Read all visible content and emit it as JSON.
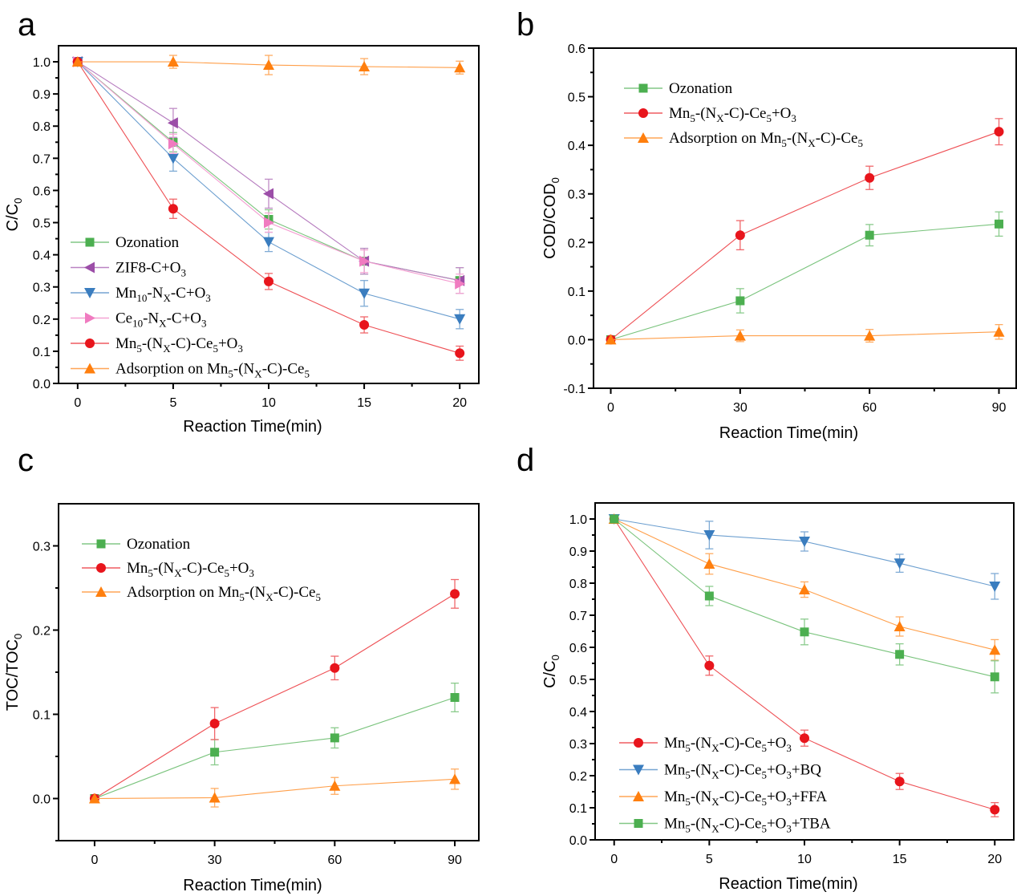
{
  "figure": {
    "panels": [
      "a",
      "b",
      "c",
      "d"
    ]
  },
  "chart_data": [
    {
      "id": "a",
      "type": "line",
      "panel_label": "a",
      "title": "",
      "xlabel": "Reaction Time(min)",
      "ylabel": {
        "base": "C/C",
        "sub": "0"
      },
      "xlim": [
        -1,
        21
      ],
      "ylim": [
        0.0,
        1.05
      ],
      "xticks": [
        0,
        5,
        10,
        15,
        20
      ],
      "xtick_labels": [
        "0",
        "5",
        "10",
        "15",
        "20"
      ],
      "yticks": [
        0.0,
        0.1,
        0.2,
        0.3,
        0.4,
        0.5,
        0.6,
        0.7,
        0.8,
        0.9,
        1.0
      ],
      "ytick_labels": [
        "0.0",
        "0.1",
        "0.2",
        "0.3",
        "0.4",
        "0.5",
        "0.6",
        "0.7",
        "0.8",
        "0.9",
        "1.0"
      ],
      "grid": false,
      "legend_position": "bottom-left",
      "x": [
        0,
        5,
        10,
        15,
        20
      ],
      "series": [
        {
          "name": "Ozonation",
          "legend": [
            [
              "Ozonation",
              ""
            ]
          ],
          "color": "#4caf50",
          "marker": "square",
          "values": [
            1.0,
            0.75,
            0.51,
            0.38,
            0.32
          ],
          "errors": [
            0.005,
            0.03,
            0.03,
            0.04,
            0.04
          ]
        },
        {
          "name": "ZIF8-C+O3",
          "legend": [
            [
              "ZIF8-C+O",
              ""
            ],
            [
              "3",
              "sub"
            ]
          ],
          "color": "#9c4ea8",
          "marker": "triangle-left",
          "values": [
            1.0,
            0.81,
            0.59,
            0.38,
            0.32
          ],
          "errors": [
            0.005,
            0.045,
            0.045,
            0.04,
            0.04
          ]
        },
        {
          "name": "Mn10-NX-C+O3",
          "legend": [
            [
              "Mn",
              ""
            ],
            [
              "10",
              "sub"
            ],
            [
              "-N",
              ""
            ],
            [
              "X",
              "sub"
            ],
            [
              "-C+O",
              ""
            ],
            [
              "3",
              "sub"
            ]
          ],
          "color": "#3a7dbf",
          "marker": "triangle-down",
          "values": [
            1.0,
            0.7,
            0.44,
            0.28,
            0.2
          ],
          "errors": [
            0.005,
            0.04,
            0.03,
            0.04,
            0.03
          ]
        },
        {
          "name": "Ce10-NX-C+O3",
          "legend": [
            [
              "Ce",
              ""
            ],
            [
              "10",
              "sub"
            ],
            [
              "-N",
              ""
            ],
            [
              "X",
              "sub"
            ],
            [
              "-C+O",
              ""
            ],
            [
              "3",
              "sub"
            ]
          ],
          "color": "#f07bc0",
          "marker": "triangle-right",
          "values": [
            1.0,
            0.745,
            0.5,
            0.38,
            0.31
          ],
          "errors": [
            0.005,
            0.03,
            0.03,
            0.035,
            0.03
          ]
        },
        {
          "name": "Mn5-(NX-C)-Ce5+O3",
          "legend": [
            [
              "Mn",
              ""
            ],
            [
              "5",
              "sub"
            ],
            [
              "-(N",
              ""
            ],
            [
              "X",
              "sub"
            ],
            [
              "-C)-Ce",
              ""
            ],
            [
              "5",
              "sub"
            ],
            [
              "+O",
              ""
            ],
            [
              "3",
              "sub"
            ]
          ],
          "color": "#e8151c",
          "marker": "circle",
          "values": [
            1.0,
            0.543,
            0.317,
            0.182,
            0.094
          ],
          "errors": [
            0.005,
            0.03,
            0.025,
            0.025,
            0.022
          ]
        },
        {
          "name": "Adsorption on Mn5-(NX-C)-Ce5",
          "legend": [
            [
              "Adsorption on Mn",
              ""
            ],
            [
              "5",
              "sub"
            ],
            [
              "-(N",
              ""
            ],
            [
              "X",
              "sub"
            ],
            [
              "-C)-Ce",
              ""
            ],
            [
              "5",
              "sub"
            ]
          ],
          "color": "#ff7f0e",
          "marker": "triangle-up",
          "values": [
            1.0,
            1.0,
            0.99,
            0.985,
            0.982
          ],
          "errors": [
            0.005,
            0.02,
            0.03,
            0.025,
            0.02
          ]
        }
      ]
    },
    {
      "id": "b",
      "type": "line",
      "panel_label": "b",
      "title": "",
      "xlabel": "Reaction Time(min)",
      "ylabel": {
        "base": "COD/COD",
        "sub": "0"
      },
      "xlim": [
        -4,
        94
      ],
      "ylim": [
        -0.1,
        0.6
      ],
      "xticks": [
        0,
        30,
        60,
        90
      ],
      "xtick_labels": [
        "0",
        "30",
        "60",
        "90"
      ],
      "yticks": [
        -0.1,
        0.0,
        0.1,
        0.2,
        0.3,
        0.4,
        0.5,
        0.6
      ],
      "ytick_labels": [
        "-0.1",
        "0.0",
        "0.1",
        "0.2",
        "0.3",
        "0.4",
        "0.5",
        "0.6"
      ],
      "grid": false,
      "legend_position": "top-left",
      "x": [
        0,
        30,
        60,
        90
      ],
      "series": [
        {
          "name": "Ozonation",
          "legend": [
            [
              "Ozonation",
              ""
            ]
          ],
          "color": "#4caf50",
          "marker": "square",
          "values": [
            0.0,
            0.08,
            0.215,
            0.238
          ],
          "errors": [
            0.003,
            0.025,
            0.022,
            0.025
          ]
        },
        {
          "name": "Mn5-(NX-C)-Ce5+O3",
          "legend": [
            [
              "Mn",
              ""
            ],
            [
              "5",
              "sub"
            ],
            [
              "-(N",
              ""
            ],
            [
              "X",
              "sub"
            ],
            [
              "-C)-Ce",
              ""
            ],
            [
              "5",
              "sub"
            ],
            [
              "+O",
              ""
            ],
            [
              "3",
              "sub"
            ]
          ],
          "color": "#e8151c",
          "marker": "circle",
          "values": [
            0.0,
            0.215,
            0.333,
            0.428
          ],
          "errors": [
            0.003,
            0.03,
            0.024,
            0.027
          ]
        },
        {
          "name": "Adsorption on Mn5-(NX-C)-Ce5",
          "legend": [
            [
              "Adsorption on Mn",
              ""
            ],
            [
              "5",
              "sub"
            ],
            [
              "-(N",
              ""
            ],
            [
              "X",
              "sub"
            ],
            [
              "-C)-Ce",
              ""
            ],
            [
              "5",
              "sub"
            ]
          ],
          "color": "#ff7f0e",
          "marker": "triangle-up",
          "values": [
            0.0,
            0.008,
            0.008,
            0.016
          ],
          "errors": [
            0.003,
            0.012,
            0.013,
            0.015
          ]
        }
      ]
    },
    {
      "id": "c",
      "type": "line",
      "panel_label": "c",
      "title": "",
      "xlabel": "Reaction Time(min)",
      "ylabel": {
        "base": "TOC/TOC",
        "sub": "0"
      },
      "xlim": [
        -9,
        96
      ],
      "ylim": [
        -0.05,
        0.35
      ],
      "xticks": [
        0,
        30,
        60,
        90
      ],
      "xtick_labels": [
        "0",
        "30",
        "60",
        "90"
      ],
      "yticks": [
        0.0,
        0.1,
        0.2,
        0.3
      ],
      "ytick_labels": [
        "0.0",
        "0.1",
        "0.2",
        "0.3"
      ],
      "minor_yticks": [
        -0.05,
        0.05,
        0.15,
        0.25
      ],
      "grid": false,
      "legend_position": "top-left",
      "x": [
        0,
        30,
        60,
        90
      ],
      "series": [
        {
          "name": "Ozonation",
          "legend": [
            [
              "Ozonation",
              ""
            ]
          ],
          "color": "#4caf50",
          "marker": "square",
          "values": [
            0.0,
            0.055,
            0.072,
            0.12
          ],
          "errors": [
            0.002,
            0.015,
            0.012,
            0.017
          ]
        },
        {
          "name": "Mn5-(NX-C)-Ce5+O3",
          "legend": [
            [
              "Mn",
              ""
            ],
            [
              "5",
              "sub"
            ],
            [
              "-(N",
              ""
            ],
            [
              "X",
              "sub"
            ],
            [
              "-C)-Ce",
              ""
            ],
            [
              "5",
              "sub"
            ],
            [
              "+O",
              ""
            ],
            [
              "3",
              "sub"
            ]
          ],
          "color": "#e8151c",
          "marker": "circle",
          "values": [
            0.0,
            0.089,
            0.155,
            0.243
          ],
          "errors": [
            0.002,
            0.019,
            0.014,
            0.017
          ]
        },
        {
          "name": "Adsorption on Mn5-(NX-C)-Ce5",
          "legend": [
            [
              "Adsorption on Mn",
              ""
            ],
            [
              "5",
              "sub"
            ],
            [
              "-(N",
              ""
            ],
            [
              "X",
              "sub"
            ],
            [
              "-C)-Ce",
              ""
            ],
            [
              "5",
              "sub"
            ]
          ],
          "color": "#ff7f0e",
          "marker": "triangle-up",
          "values": [
            0.0,
            0.001,
            0.015,
            0.023
          ],
          "errors": [
            0.002,
            0.011,
            0.01,
            0.012
          ]
        }
      ]
    },
    {
      "id": "d",
      "type": "line",
      "panel_label": "d",
      "title": "",
      "xlabel": "Reaction Time(min)",
      "ylabel": {
        "base": "C/C",
        "sub": "0"
      },
      "xlim": [
        -1,
        21
      ],
      "ylim": [
        0.0,
        1.05
      ],
      "xticks": [
        0,
        5,
        10,
        15,
        20
      ],
      "xtick_labels": [
        "0",
        "5",
        "10",
        "15",
        "20"
      ],
      "yticks": [
        0.0,
        0.1,
        0.2,
        0.3,
        0.4,
        0.5,
        0.6,
        0.7,
        0.8,
        0.9,
        1.0
      ],
      "ytick_labels": [
        "0.0",
        "0.1",
        "0.2",
        "0.3",
        "0.4",
        "0.5",
        "0.6",
        "0.7",
        "0.8",
        "0.9",
        "1.0"
      ],
      "grid": false,
      "legend_position": "bottom-left",
      "x": [
        0,
        5,
        10,
        15,
        20
      ],
      "series": [
        {
          "name": "Mn5-(NX-C)-Ce5+O3",
          "legend": [
            [
              "Mn",
              ""
            ],
            [
              "5",
              "sub"
            ],
            [
              "-(N",
              ""
            ],
            [
              "X",
              "sub"
            ],
            [
              "-C)-Ce",
              ""
            ],
            [
              "5",
              "sub"
            ],
            [
              "+O",
              ""
            ],
            [
              "3",
              "sub"
            ]
          ],
          "color": "#e8151c",
          "marker": "circle",
          "values": [
            1.0,
            0.543,
            0.317,
            0.182,
            0.094
          ],
          "errors": [
            0.005,
            0.03,
            0.025,
            0.025,
            0.022
          ]
        },
        {
          "name": "Mn5-(NX-C)-Ce5+O3+BQ",
          "legend": [
            [
              "Mn",
              ""
            ],
            [
              "5",
              "sub"
            ],
            [
              "-(N",
              ""
            ],
            [
              "X",
              "sub"
            ],
            [
              "-C)-Ce",
              ""
            ],
            [
              "5",
              "sub"
            ],
            [
              "+O",
              ""
            ],
            [
              "3",
              "sub"
            ],
            [
              "+BQ",
              ""
            ]
          ],
          "color": "#3a7dbf",
          "marker": "triangle-down",
          "values": [
            1.0,
            0.95,
            0.93,
            0.862,
            0.79
          ],
          "errors": [
            0.005,
            0.043,
            0.03,
            0.028,
            0.04
          ]
        },
        {
          "name": "Mn5-(NX-C)-Ce5+O3+FFA",
          "legend": [
            [
              "Mn",
              ""
            ],
            [
              "5",
              "sub"
            ],
            [
              "-(N",
              ""
            ],
            [
              "X",
              "sub"
            ],
            [
              "-C)-Ce",
              ""
            ],
            [
              "5",
              "sub"
            ],
            [
              "+O",
              ""
            ],
            [
              "3",
              "sub"
            ],
            [
              "+FFA",
              ""
            ]
          ],
          "color": "#ff7f0e",
          "marker": "triangle-up",
          "values": [
            1.0,
            0.86,
            0.78,
            0.665,
            0.592
          ],
          "errors": [
            0.005,
            0.032,
            0.024,
            0.03,
            0.032
          ]
        },
        {
          "name": "Mn5-(NX-C)-Ce5+O3+TBA",
          "legend": [
            [
              "Mn",
              ""
            ],
            [
              "5",
              "sub"
            ],
            [
              "-(N",
              ""
            ],
            [
              "X",
              "sub"
            ],
            [
              "-C)-Ce",
              ""
            ],
            [
              "5",
              "sub"
            ],
            [
              "+O",
              ""
            ],
            [
              "3",
              "sub"
            ],
            [
              "+TBA",
              ""
            ]
          ],
          "color": "#4caf50",
          "marker": "square",
          "values": [
            1.0,
            0.76,
            0.648,
            0.578,
            0.508
          ],
          "errors": [
            0.005,
            0.03,
            0.04,
            0.033,
            0.05
          ]
        }
      ]
    }
  ]
}
